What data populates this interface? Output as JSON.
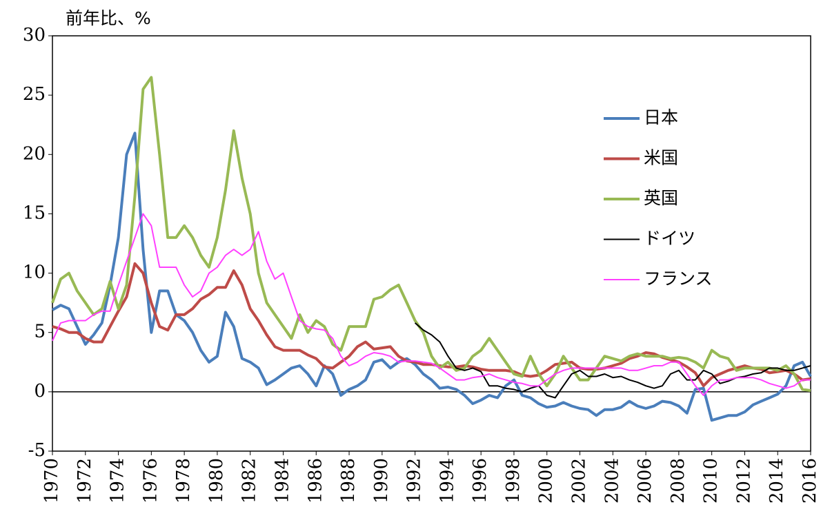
{
  "chart_data": {
    "type": "line",
    "ylabel": "前年比、%",
    "x": [
      1970,
      1970.5,
      1971,
      1971.5,
      1972,
      1972.5,
      1973,
      1973.5,
      1974,
      1974.5,
      1975,
      1975.5,
      1976,
      1976.5,
      1977,
      1977.5,
      1978,
      1978.5,
      1979,
      1979.5,
      1980,
      1980.5,
      1981,
      1981.5,
      1982,
      1982.5,
      1983,
      1983.5,
      1984,
      1984.5,
      1985,
      1985.5,
      1986,
      1986.5,
      1987,
      1987.5,
      1988,
      1988.5,
      1989,
      1989.5,
      1990,
      1990.5,
      1991,
      1991.5,
      1992,
      1992.5,
      1993,
      1993.5,
      1994,
      1994.5,
      1995,
      1995.5,
      1996,
      1996.5,
      1997,
      1997.5,
      1998,
      1998.5,
      1999,
      1999.5,
      2000,
      2000.5,
      2001,
      2001.5,
      2002,
      2002.5,
      2003,
      2003.5,
      2004,
      2004.5,
      2005,
      2005.5,
      2006,
      2006.5,
      2007,
      2007.5,
      2008,
      2008.5,
      2009,
      2009.5,
      2010,
      2010.5,
      2011,
      2011.5,
      2012,
      2012.5,
      2013,
      2013.5,
      2014,
      2014.5,
      2015,
      2015.5,
      2016
    ],
    "series": [
      {
        "name": "日本",
        "color": "#4a7ebb",
        "width": 4,
        "values": [
          6.9,
          7.3,
          7.0,
          5.5,
          4.0,
          4.8,
          5.8,
          9,
          13,
          20,
          21.8,
          12,
          5,
          8.5,
          8.5,
          6.5,
          6,
          5,
          3.5,
          2.5,
          3,
          6.7,
          5.5,
          2.8,
          2.5,
          2.0,
          0.6,
          1.0,
          1.5,
          2.0,
          2.2,
          1.5,
          0.5,
          2.2,
          1.5,
          -0.3,
          0.2,
          0.5,
          1.0,
          2.5,
          2.7,
          2.0,
          2.5,
          2.8,
          2.3,
          1.5,
          1.0,
          0.3,
          0.4,
          0.2,
          -0.3,
          -1.0,
          -0.7,
          -0.3,
          -0.5,
          0.5,
          1.0,
          -0.3,
          -0.5,
          -1.0,
          -1.3,
          -1.2,
          -0.9,
          -1.2,
          -1.4,
          -1.5,
          -2.0,
          -1.5,
          -1.5,
          -1.3,
          -0.8,
          -1.2,
          -1.4,
          -1.2,
          -0.8,
          -0.9,
          -1.2,
          -1.8,
          0.2,
          0.3,
          -2.4,
          -2.2,
          -2.0,
          -2.0,
          -1.7,
          -1.1,
          -0.8,
          -0.5,
          -0.2,
          0.5,
          2.2,
          2.5,
          1.3
        ]
      },
      {
        "name": "米国",
        "color": "#be4b48",
        "width": 4,
        "values": [
          5.5,
          5.3,
          5.0,
          5.0,
          4.5,
          4.2,
          4.2,
          5.5,
          6.8,
          8.0,
          10.8,
          10.0,
          7.5,
          5.5,
          5.2,
          6.5,
          6.5,
          7.0,
          7.8,
          8.2,
          8.8,
          8.8,
          10.2,
          9.0,
          7.0,
          6.0,
          4.8,
          3.8,
          3.5,
          3.5,
          3.5,
          3.1,
          2.8,
          2.1,
          2.0,
          2.5,
          3.0,
          3.8,
          4.2,
          3.6,
          3.7,
          3.8,
          3.0,
          2.6,
          2.5,
          2.3,
          2.3,
          2.2,
          2.1,
          2.1,
          2.2,
          2.1,
          1.9,
          1.8,
          1.8,
          1.8,
          1.7,
          1.4,
          1.3,
          1.4,
          1.8,
          2.3,
          2.4,
          2.5,
          2.0,
          1.9,
          1.9,
          2.0,
          2.2,
          2.4,
          2.8,
          3.0,
          3.3,
          3.2,
          2.9,
          2.7,
          2.5,
          2.1,
          1.6,
          0.5,
          1.2,
          1.5,
          1.8,
          2.0,
          2.2,
          2.0,
          1.9,
          1.6,
          1.7,
          1.8,
          1.5,
          1.0,
          1.1
        ]
      },
      {
        "name": "英国",
        "color": "#98b954",
        "width": 4,
        "values": [
          7.5,
          9.5,
          10.0,
          8.5,
          7.5,
          6.5,
          7.0,
          9.3,
          7.0,
          9.0,
          16.5,
          25.5,
          26.5,
          20,
          13,
          13,
          14,
          13,
          11.5,
          10.5,
          13,
          17,
          22,
          18,
          15,
          10,
          7.5,
          6.5,
          5.5,
          4.5,
          6.5,
          5.0,
          6.0,
          5.5,
          4.0,
          3.5,
          5.5,
          5.5,
          5.5,
          7.8,
          8.0,
          8.6,
          9.0,
          7.5,
          6.0,
          5.0,
          3.0,
          2.0,
          2.5,
          1.8,
          2.0,
          3.0,
          3.5,
          4.5,
          3.5,
          2.5,
          1.5,
          1.3,
          3.0,
          1.5,
          0.5,
          1.5,
          3.0,
          2.0,
          1.0,
          1.0,
          2.0,
          3.0,
          2.8,
          2.6,
          3.0,
          3.2,
          3.0,
          3.0,
          3.0,
          2.8,
          2.9,
          2.8,
          2.5,
          2.0,
          3.5,
          3.0,
          2.8,
          1.8,
          2.0,
          2.0,
          2.0,
          2.0,
          1.8,
          2.2,
          1.5,
          0.2,
          0.1
        ]
      },
      {
        "name": "ドイツ",
        "color": "#000000",
        "width": 2,
        "values": [
          null,
          null,
          null,
          null,
          null,
          null,
          null,
          null,
          null,
          null,
          null,
          null,
          null,
          null,
          null,
          null,
          null,
          null,
          null,
          null,
          null,
          null,
          null,
          null,
          null,
          null,
          null,
          null,
          null,
          null,
          null,
          null,
          null,
          null,
          null,
          null,
          null,
          null,
          null,
          null,
          null,
          null,
          null,
          null,
          5.8,
          5.2,
          4.8,
          4.2,
          3.0,
          2.0,
          1.8,
          2.0,
          1.7,
          0.5,
          0.5,
          0.3,
          0.2,
          0.0,
          0.3,
          0.5,
          -0.3,
          -0.5,
          0.5,
          1.5,
          1.8,
          1.3,
          1.3,
          1.5,
          1.2,
          1.3,
          1.0,
          0.8,
          0.5,
          0.3,
          0.5,
          1.5,
          1.8,
          1.0,
          1.0,
          1.8,
          1.5,
          0.7,
          0.9,
          1.2,
          1.3,
          1.5,
          1.6,
          2.0,
          2.0,
          1.8,
          1.8,
          2.0,
          2.2
        ]
      },
      {
        "name": "フランス",
        "color": "#ff40ff",
        "width": 2,
        "values": [
          4.3,
          5.8,
          6.0,
          6.0,
          6.0,
          6.5,
          6.8,
          6.8,
          9.0,
          11.0,
          13.0,
          15.0,
          14.0,
          10.5,
          10.5,
          10.5,
          9.0,
          8.0,
          8.5,
          10.0,
          10.5,
          11.5,
          12.0,
          11.5,
          12.0,
          13.5,
          11.0,
          9.5,
          10.0,
          8.0,
          6.0,
          5.5,
          5.3,
          5.2,
          4.5,
          3.0,
          2.2,
          2.5,
          3.0,
          3.3,
          3.2,
          3.0,
          2.5,
          2.6,
          2.6,
          2.5,
          2.4,
          2.0,
          1.5,
          1.0,
          1.0,
          1.2,
          1.3,
          1.5,
          1.2,
          1.0,
          0.8,
          0.7,
          0.5,
          0.5,
          1.0,
          1.5,
          1.8,
          2.0,
          2.0,
          2.0,
          2.0,
          2.0,
          2.0,
          2.0,
          1.8,
          1.8,
          2.0,
          2.2,
          2.2,
          2.5,
          2.5,
          1.5,
          0.5,
          -0.3,
          0.5,
          1.0,
          1.0,
          1.2,
          1.2,
          1.2,
          1.0,
          0.7,
          0.5,
          0.3,
          0.5,
          1.0,
          1.0
        ]
      }
    ],
    "xlim": [
      1970,
      2016
    ],
    "xticks": [
      1970,
      1972,
      1974,
      1976,
      1978,
      1980,
      1982,
      1984,
      1986,
      1988,
      1990,
      1992,
      1994,
      1996,
      1998,
      2000,
      2002,
      2004,
      2006,
      2008,
      2010,
      2012,
      2014,
      2016
    ],
    "ylim": [
      -5,
      30
    ],
    "yticks": [
      30,
      25,
      20,
      15,
      10,
      5,
      0,
      -5
    ],
    "grid": false,
    "legend": "upper right"
  }
}
